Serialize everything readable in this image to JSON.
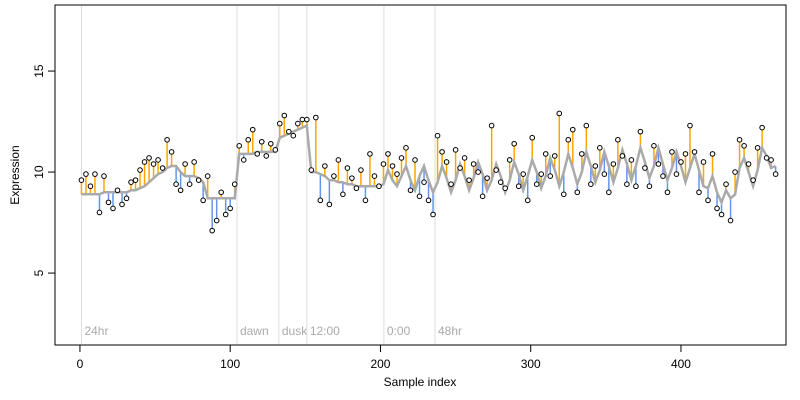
{
  "chart_data": {
    "type": "scatter",
    "xlabel": "Sample index",
    "ylabel": "Expression",
    "xlim": [
      -16.6,
      469.9
    ],
    "ylim": [
      1.44,
      18.27
    ],
    "xticks": [
      0,
      100,
      200,
      300,
      400
    ],
    "yticks": [
      5,
      10,
      15
    ],
    "point_fill": "#ffffff",
    "point_stroke": "#000000",
    "line_color": "#aaaaaa",
    "up_color": "#ffa500",
    "down_color": "#6495ed",
    "annotation_color": "#dddddd",
    "annotations": [
      {
        "x": 1,
        "label": "24hr"
      },
      {
        "x": 104.5,
        "label": "dawn"
      },
      {
        "x": 132.4,
        "label": "dusk"
      },
      {
        "x": 151,
        "label": "12:00"
      },
      {
        "x": 202.3,
        "label": "0:00"
      },
      {
        "x": 236.3,
        "label": "48hr"
      }
    ],
    "annotation_y": 2.1,
    "x": [
      1,
      4,
      7,
      10,
      13,
      16,
      19,
      22,
      25,
      28,
      31,
      34,
      37,
      40,
      43,
      46,
      49,
      52,
      55,
      58,
      61,
      64,
      67,
      70,
      73,
      76,
      79,
      82,
      85,
      88,
      91,
      94,
      97,
      100,
      103,
      106,
      109,
      112,
      115,
      118,
      121,
      124,
      127,
      130,
      133,
      136,
      139,
      142,
      145,
      148,
      151,
      154,
      157,
      160,
      163,
      166,
      169,
      172,
      175,
      178,
      181,
      184,
      187,
      190,
      193,
      196,
      199,
      202,
      205,
      208,
      211,
      214,
      217,
      220,
      223,
      226,
      229,
      232,
      235,
      238,
      241,
      244,
      247,
      250,
      253,
      256,
      259,
      262,
      265,
      268,
      271,
      274,
      277,
      280,
      283,
      286,
      289,
      292,
      295,
      298,
      301,
      304,
      307,
      310,
      313,
      316,
      319,
      322,
      325,
      328,
      331,
      334,
      337,
      340,
      343,
      346,
      349,
      352,
      355,
      358,
      361,
      364,
      367,
      370,
      373,
      376,
      379,
      382,
      385,
      388,
      391,
      394,
      397,
      400,
      403,
      406,
      409,
      412,
      415,
      418,
      421,
      424,
      427,
      430,
      433,
      436,
      439,
      442,
      445,
      448,
      451,
      454,
      457,
      460,
      463
    ],
    "values": [
      9.6,
      9.9,
      9.3,
      9.9,
      8.0,
      9.8,
      8.5,
      8.2,
      9.1,
      8.4,
      8.7,
      9.5,
      9.6,
      10.1,
      10.5,
      10.7,
      10.4,
      10.6,
      10.2,
      11.6,
      11.0,
      9.4,
      9.1,
      10.4,
      9.4,
      10.5,
      9.6,
      8.6,
      9.8,
      7.1,
      7.6,
      9.0,
      7.9,
      8.2,
      9.4,
      11.3,
      10.6,
      11.6,
      12.1,
      10.9,
      11.5,
      10.8,
      11.4,
      11.1,
      12.4,
      12.8,
      12.0,
      11.8,
      12.4,
      12.6,
      12.6,
      10.1,
      12.7,
      8.6,
      10.3,
      8.4,
      9.8,
      10.6,
      8.9,
      10.2,
      9.7,
      9.2,
      10.1,
      8.6,
      10.9,
      9.8,
      9.3,
      10.4,
      10.9,
      10.3,
      9.9,
      10.7,
      11.2,
      9.1,
      10.6,
      8.8,
      9.5,
      8.6,
      7.9,
      11.8,
      11.0,
      10.5,
      9.4,
      11.1,
      10.2,
      10.7,
      9.6,
      10.4,
      10.0,
      8.8,
      9.7,
      12.3,
      10.1,
      9.5,
      9.2,
      10.6,
      11.4,
      9.3,
      9.9,
      8.6,
      11.7,
      9.4,
      9.9,
      10.9,
      9.8,
      10.8,
      12.9,
      8.9,
      11.6,
      12.1,
      9.0,
      10.9,
      12.3,
      9.4,
      10.3,
      11.2,
      9.9,
      9.0,
      10.4,
      11.6,
      10.8,
      9.4,
      10.6,
      9.3,
      12.0,
      10.2,
      9.3,
      11.3,
      10.4,
      9.8,
      9.0,
      11.0,
      9.9,
      10.5,
      10.9,
      12.3,
      11.0,
      9.0,
      10.5,
      8.6,
      10.9,
      8.2,
      7.9,
      9.4,
      7.6,
      10.0,
      11.6,
      11.3,
      10.4,
      9.6,
      11.2,
      12.2,
      10.7,
      10.6,
      9.9
    ],
    "fitted": [
      8.9,
      8.9,
      8.9,
      8.9,
      8.9,
      9.0,
      9.0,
      9.0,
      9.0,
      9.0,
      9.0,
      9.1,
      9.1,
      9.2,
      9.3,
      9.5,
      9.7,
      9.9,
      10.0,
      10.2,
      10.3,
      10.3,
      10.0,
      9.8,
      9.8,
      9.8,
      9.7,
      9.5,
      8.7,
      8.7,
      8.7,
      8.7,
      8.7,
      8.7,
      8.7,
      10.9,
      10.9,
      10.9,
      10.9,
      11.0,
      11.0,
      11.0,
      11.0,
      11.0,
      11.7,
      11.8,
      11.9,
      12.0,
      12.1,
      12.2,
      12.3,
      10.0,
      10.0,
      9.9,
      9.8,
      9.6,
      9.6,
      9.5,
      9.5,
      9.4,
      9.4,
      9.3,
      9.3,
      9.3,
      9.3,
      9.3,
      9.3,
      9.4,
      10.1,
      9.6,
      9.3,
      9.8,
      10.3,
      9.6,
      9.1,
      9.8,
      10.3,
      9.6,
      9.0,
      9.5,
      10.3,
      9.7,
      9.0,
      9.6,
      10.4,
      9.8,
      9.1,
      9.7,
      10.5,
      9.9,
      9.1,
      9.6,
      10.4,
      9.8,
      9.0,
      9.6,
      10.5,
      9.9,
      9.1,
      9.8,
      10.6,
      10.0,
      9.2,
      9.8,
      10.7,
      10.1,
      9.3,
      10.0,
      10.9,
      10.2,
      9.4,
      10.0,
      11.0,
      10.3,
      9.5,
      10.1,
      11.0,
      10.3,
      9.5,
      10.2,
      11.1,
      10.4,
      9.6,
      10.3,
      11.2,
      10.5,
      9.7,
      10.3,
      11.2,
      10.4,
      9.6,
      10.2,
      11.0,
      10.3,
      9.5,
      10.2,
      10.9,
      10.1,
      9.3,
      9.2,
      9.8,
      9.0,
      8.5,
      9.1,
      8.7,
      8.9,
      10.2,
      10.7,
      10.0,
      9.3,
      10.1,
      11.2,
      10.8,
      10.2,
      10.3
    ]
  }
}
